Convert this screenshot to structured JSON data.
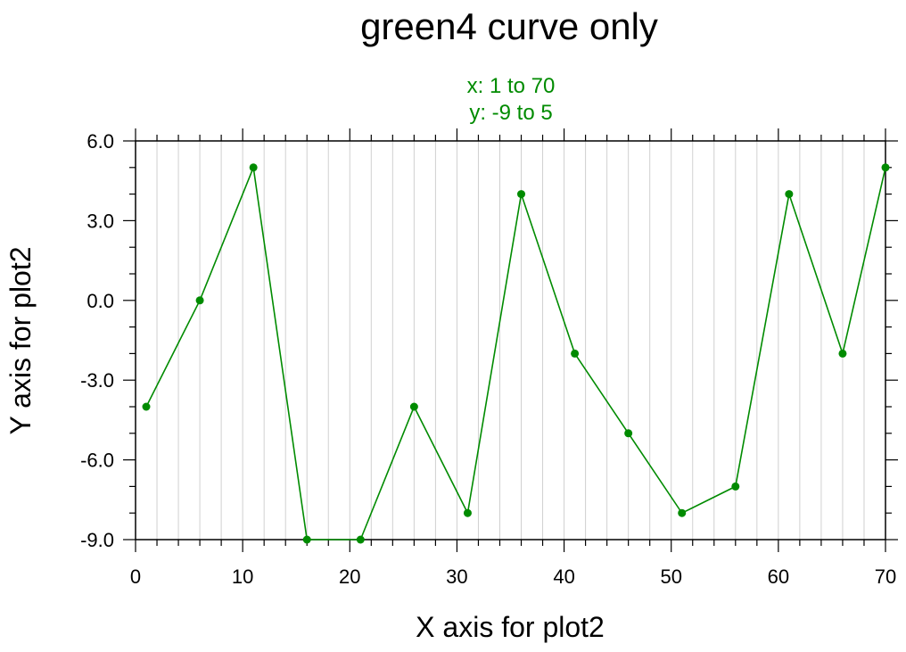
{
  "chart_data": {
    "type": "line",
    "title": "green4 curve only",
    "subtitle_lines": [
      "x: 1 to 70",
      "y: -9 to 5"
    ],
    "xlabel": "X axis for plot2",
    "ylabel": "Y axis for plot2",
    "xlim": [
      0,
      70
    ],
    "ylim": [
      -9,
      6
    ],
    "x_ticks": [
      0,
      10,
      20,
      30,
      40,
      50,
      60,
      70
    ],
    "x_tick_labels": [
      "0",
      "10",
      "20",
      "30",
      "40",
      "50",
      "60",
      "70"
    ],
    "y_ticks": [
      -9,
      -6,
      -3,
      0,
      3,
      6
    ],
    "y_tick_labels": [
      "-9.0",
      "-6.0",
      "-3.0",
      "0.0",
      "3.0",
      "6.0"
    ],
    "x_minor_step": 2,
    "y_minor_step": 1,
    "grid": "vertical-minor",
    "series": [
      {
        "x": [
          1,
          6,
          11,
          16,
          21,
          26,
          31,
          36,
          41,
          46,
          51,
          56,
          61,
          66,
          70
        ],
        "y": [
          -4,
          0,
          5,
          -9,
          -9,
          -4,
          -8,
          4,
          -2,
          -5,
          -8,
          -7,
          4,
          -2,
          5
        ],
        "color": "#008B00"
      }
    ]
  },
  "colors": {
    "series": "#008B00",
    "subtitle": "#008B00",
    "grid": "#d0d0d0",
    "axis": "#000000"
  }
}
